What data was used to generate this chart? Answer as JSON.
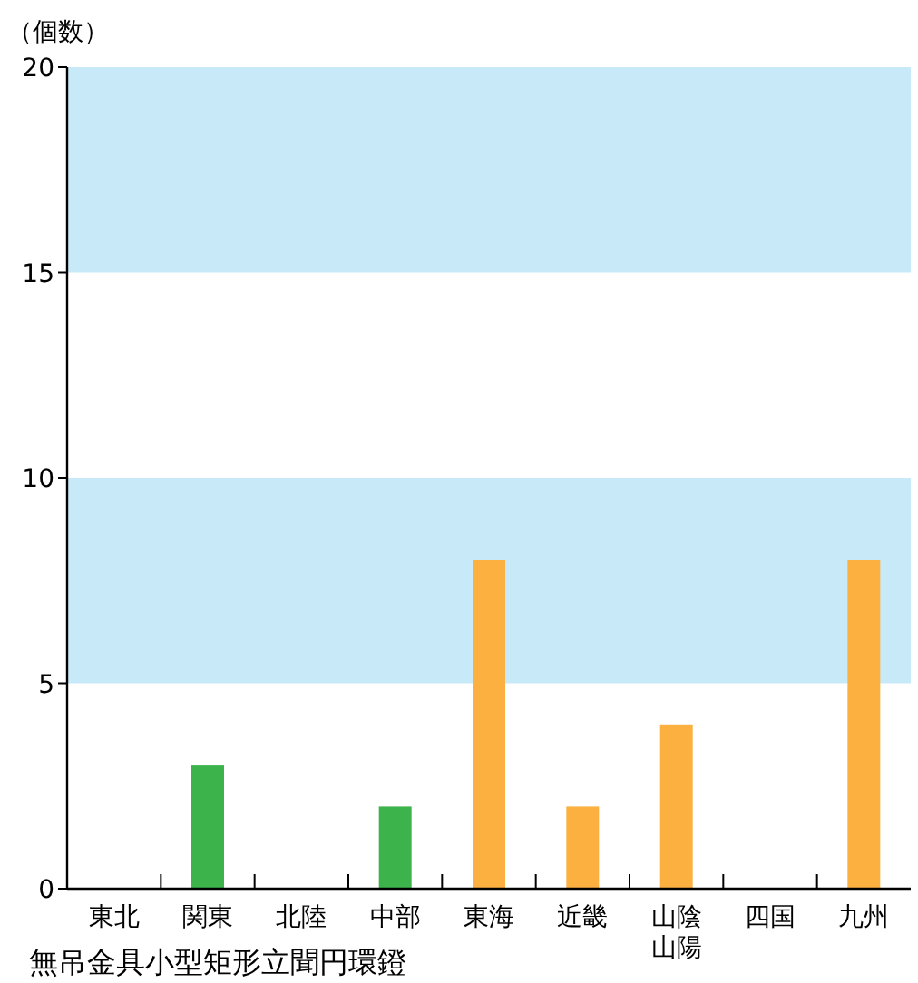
{
  "chart_data": {
    "type": "bar",
    "ylabel": "（個数）",
    "categories": [
      "東北",
      "関東",
      "北陸",
      "中部",
      "東海",
      "近畿",
      "山陰山陽",
      "四国",
      "九州"
    ],
    "values": [
      0,
      3,
      0,
      2,
      8,
      2,
      4,
      0,
      8
    ],
    "colors": [
      "#3cb44b",
      "#3cb44b",
      "#3cb44b",
      "#3cb44b",
      "#fbb040",
      "#fbb040",
      "#fbb040",
      "#fbb040",
      "#fbb040"
    ],
    "ylim": [
      0,
      20
    ],
    "yticks": [
      0,
      5,
      10,
      15,
      20
    ],
    "bands": [
      {
        "axis": "y",
        "from": 5,
        "to": 10,
        "color": "#c8eaf8"
      },
      {
        "axis": "y",
        "from": 15,
        "to": 20,
        "color": "#c8eaf8"
      }
    ],
    "annotations": [
      "無吊金具小型矩形立聞円環鐙"
    ],
    "grid": false
  }
}
